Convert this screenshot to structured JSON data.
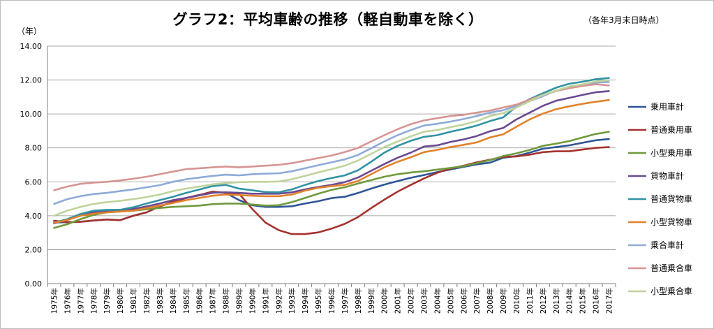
{
  "chart_data": {
    "type": "line",
    "title": "グラフ2：平均車齢の推移（軽自動車を除く）",
    "note": "（各年3月末日時点）",
    "ylabel": "（年）",
    "xlabel": "",
    "ylim": [
      0,
      14
    ],
    "yticks": [
      "0.00",
      "2.00",
      "4.00",
      "6.00",
      "8.00",
      "10.00",
      "12.00",
      "14.00"
    ],
    "grid": true,
    "legend_position": "right",
    "categories": [
      "1975年",
      "1976年",
      "1977年",
      "1978年",
      "1979年",
      "1980年",
      "1981年",
      "1982年",
      "1983年",
      "1984年",
      "1985年",
      "1986年",
      "1987年",
      "1988年",
      "1989年",
      "1990年",
      "1991年",
      "1992年",
      "1993年",
      "1994年",
      "1995年",
      "1996年",
      "1997年",
      "1998年",
      "1999年",
      "2000年",
      "2001年",
      "2002年",
      "2003年",
      "2004年",
      "2005年",
      "2006年",
      "2007年",
      "2008年",
      "2009年",
      "2010年",
      "2011年",
      "2012年",
      "2013年",
      "2014年",
      "2015年",
      "2016年",
      "2017年"
    ],
    "series": [
      {
        "name": "乗用車計",
        "color": "#2f5597",
        "values": [
          3.6,
          3.62,
          3.65,
          3.72,
          3.78,
          3.74,
          4.0,
          4.2,
          4.55,
          4.82,
          5.05,
          5.22,
          5.42,
          5.35,
          4.92,
          4.62,
          4.52,
          4.52,
          4.56,
          4.72,
          4.86,
          5.04,
          5.12,
          5.34,
          5.6,
          5.84,
          6.04,
          6.24,
          6.4,
          6.57,
          6.73,
          6.88,
          7.03,
          7.13,
          7.42,
          7.52,
          7.72,
          7.95,
          8.05,
          8.15,
          8.3,
          8.45,
          8.52
        ]
      },
      {
        "name": "普通乗用車",
        "color": "#a5322f",
        "values": [
          3.7,
          3.62,
          3.65,
          3.72,
          3.78,
          3.74,
          4.0,
          4.2,
          4.55,
          4.82,
          5.05,
          5.22,
          5.42,
          5.35,
          5.3,
          4.4,
          3.6,
          3.15,
          2.92,
          2.92,
          3.02,
          3.24,
          3.52,
          3.92,
          4.45,
          4.95,
          5.42,
          5.82,
          6.2,
          6.53,
          6.78,
          6.95,
          7.15,
          7.3,
          7.47,
          7.5,
          7.6,
          7.75,
          7.8,
          7.8,
          7.9,
          8.0,
          8.05
        ]
      },
      {
        "name": "小型乗用車",
        "color": "#6f9a3c",
        "values": [
          3.28,
          3.5,
          3.8,
          4.05,
          4.2,
          4.25,
          4.3,
          4.38,
          4.46,
          4.52,
          4.56,
          4.6,
          4.68,
          4.72,
          4.72,
          4.66,
          4.6,
          4.62,
          4.8,
          5.05,
          5.3,
          5.52,
          5.68,
          5.9,
          6.1,
          6.3,
          6.45,
          6.55,
          6.62,
          6.72,
          6.82,
          6.92,
          7.1,
          7.28,
          7.52,
          7.68,
          7.88,
          8.12,
          8.25,
          8.4,
          8.62,
          8.82,
          8.95
        ]
      },
      {
        "name": "貨物車計",
        "color": "#6a4a91",
        "values": [
          3.55,
          3.75,
          4.05,
          4.2,
          4.3,
          4.35,
          4.4,
          4.55,
          4.72,
          4.92,
          5.05,
          5.2,
          5.35,
          5.38,
          5.35,
          5.3,
          5.3,
          5.3,
          5.38,
          5.55,
          5.7,
          5.82,
          5.98,
          6.25,
          6.65,
          7.05,
          7.42,
          7.72,
          8.08,
          8.15,
          8.35,
          8.5,
          8.7,
          8.98,
          9.18,
          9.68,
          10.08,
          10.48,
          10.78,
          10.95,
          11.12,
          11.28,
          11.35
        ]
      },
      {
        "name": "普通貨物車",
        "color": "#3193a3",
        "values": [
          3.6,
          3.8,
          4.1,
          4.3,
          4.35,
          4.35,
          4.5,
          4.72,
          4.92,
          5.12,
          5.35,
          5.55,
          5.75,
          5.82,
          5.6,
          5.5,
          5.4,
          5.38,
          5.55,
          5.82,
          6.05,
          6.22,
          6.38,
          6.68,
          7.18,
          7.72,
          8.12,
          8.42,
          8.65,
          8.75,
          8.95,
          9.12,
          9.32,
          9.58,
          9.8,
          10.45,
          10.88,
          11.22,
          11.55,
          11.78,
          11.9,
          12.05,
          12.12
        ]
      },
      {
        "name": "小型貨物車",
        "color": "#e2822b",
        "values": [
          3.58,
          3.75,
          4.0,
          4.12,
          4.2,
          4.25,
          4.3,
          4.45,
          4.6,
          4.75,
          4.92,
          5.05,
          5.18,
          5.25,
          5.22,
          5.18,
          5.15,
          5.15,
          5.25,
          5.48,
          5.65,
          5.75,
          5.82,
          6.05,
          6.45,
          6.85,
          7.18,
          7.45,
          7.75,
          7.88,
          8.05,
          8.18,
          8.32,
          8.62,
          8.8,
          9.25,
          9.68,
          10.02,
          10.28,
          10.45,
          10.6,
          10.72,
          10.82
        ]
      },
      {
        "name": "乗合車計",
        "color": "#8eaad8",
        "values": [
          4.7,
          4.98,
          5.15,
          5.28,
          5.35,
          5.45,
          5.55,
          5.68,
          5.8,
          6.0,
          6.15,
          6.25,
          6.35,
          6.42,
          6.38,
          6.45,
          6.48,
          6.5,
          6.62,
          6.8,
          6.98,
          7.15,
          7.32,
          7.58,
          7.98,
          8.38,
          8.75,
          9.05,
          9.32,
          9.42,
          9.55,
          9.7,
          9.88,
          10.08,
          10.22,
          10.48,
          10.75,
          11.05,
          11.38,
          11.58,
          11.72,
          11.85,
          11.88
        ]
      },
      {
        "name": "普通乗合車",
        "color": "#d69592",
        "values": [
          5.5,
          5.72,
          5.88,
          5.95,
          6.0,
          6.08,
          6.18,
          6.3,
          6.45,
          6.6,
          6.75,
          6.8,
          6.85,
          6.9,
          6.85,
          6.9,
          6.95,
          7.0,
          7.1,
          7.25,
          7.4,
          7.55,
          7.75,
          8.0,
          8.38,
          8.75,
          9.1,
          9.4,
          9.62,
          9.75,
          9.88,
          9.95,
          10.08,
          10.2,
          10.38,
          10.55,
          10.85,
          11.12,
          11.35,
          11.52,
          11.65,
          11.75,
          11.68
        ]
      },
      {
        "name": "小型乗合車",
        "color": "#bfd49c",
        "values": [
          4.0,
          4.3,
          4.52,
          4.7,
          4.8,
          4.88,
          4.98,
          5.1,
          5.25,
          5.45,
          5.6,
          5.72,
          5.85,
          5.92,
          5.98,
          6.0,
          6.0,
          6.02,
          6.15,
          6.35,
          6.55,
          6.75,
          6.95,
          7.25,
          7.65,
          8.05,
          8.38,
          8.68,
          8.95,
          9.05,
          9.22,
          9.38,
          9.58,
          9.88,
          10.05,
          10.38,
          10.75,
          11.12,
          11.38,
          11.62,
          11.75,
          11.92,
          11.98
        ]
      }
    ]
  }
}
